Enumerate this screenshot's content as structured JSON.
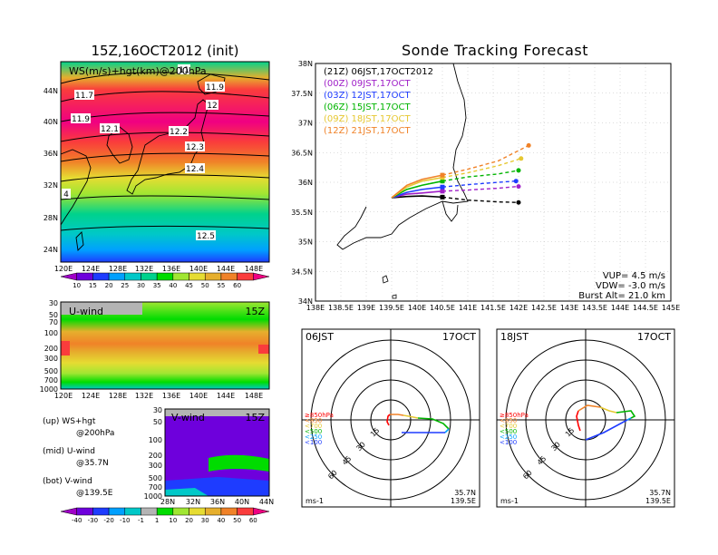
{
  "left_title": "15Z,16OCT2012 (init)",
  "right_title": "Sonde Tracking Forecast",
  "map_panel": {
    "label": "WS(m/s)+hgt(km)@200hPa",
    "lat_labels": [
      "44N",
      "40N",
      "36N",
      "32N",
      "28N",
      "24N"
    ],
    "lon_labels": [
      "120E",
      "124E",
      "128E",
      "132E",
      "136E",
      "140E",
      "144E",
      "148E"
    ],
    "contour_labels": [
      "11.7",
      "11.9",
      "12.1",
      "12.2",
      "12.3",
      "12.4",
      "12.5",
      "11.9",
      "12",
      "11",
      "4"
    ],
    "colorbar_labels": [
      "10",
      "15",
      "20",
      "25",
      "30",
      "35",
      "40",
      "45",
      "50",
      "55",
      "60"
    ],
    "colorbar_colors": [
      "#a000c8",
      "#6e00dc",
      "#1e3cff",
      "#00a0ff",
      "#00c8c8",
      "#00d28c",
      "#00dc00",
      "#a0e632",
      "#e6dc32",
      "#e6af2d",
      "#f08228",
      "#fa3c3c",
      "#f00082"
    ]
  },
  "uwind_panel": {
    "label": "U-wind",
    "time": "15Z",
    "y_labels": [
      "30",
      "50",
      "70",
      "100",
      "200",
      "300",
      "500",
      "700",
      "1000"
    ],
    "x_labels": [
      "120E",
      "124E",
      "128E",
      "132E",
      "136E",
      "140E",
      "144E",
      "148E"
    ]
  },
  "vwind_panel": {
    "label": "V-wind",
    "time": "15Z",
    "y_labels": [
      "30",
      "50",
      "100",
      "200",
      "300",
      "500",
      "700",
      "1000"
    ],
    "x_labels": [
      "28N",
      "32N",
      "36N",
      "40N",
      "44N"
    ]
  },
  "notes": [
    {
      "a": "(up) WS+hgt",
      "b": "@200hPa"
    },
    {
      "a": "(mid) U-wind",
      "b": "@35.7N"
    },
    {
      "a": "(bot) V-wind",
      "b": "@139.5E"
    }
  ],
  "bottom_colorbar_labels": [
    "-40",
    "-30",
    "-20",
    "-10",
    "-1",
    "1",
    "10",
    "20",
    "30",
    "40",
    "50",
    "60"
  ],
  "bottom_colorbar_colors": [
    "#a000c8",
    "#6e00dc",
    "#1e3cff",
    "#00a0ff",
    "#00c8c8",
    "#b4b4b4",
    "#00dc00",
    "#a0e632",
    "#e6dc32",
    "#e6af2d",
    "#f08228",
    "#fa3c3c",
    "#f00082"
  ],
  "track_panel": {
    "lat_labels": [
      "38N",
      "37.5N",
      "37N",
      "36.5N",
      "36N",
      "35.5N",
      "35N",
      "34.5N",
      "34N"
    ],
    "lon_labels": [
      "138E",
      "138.5E",
      "139E",
      "139.5E",
      "140E",
      "140.5E",
      "141E",
      "141.5E",
      "142E",
      "142.5E",
      "143E",
      "143.5E",
      "144E",
      "144.5E",
      "145E"
    ],
    "legend": [
      {
        "text": "(21Z)  06JST,17OCT2012",
        "color": "#000000"
      },
      {
        "text": "(00Z)  09JST,17OCT",
        "color": "#a020c8"
      },
      {
        "text": "(03Z)  12JST,17OCT",
        "color": "#1e3cff"
      },
      {
        "text": "(06Z)  15JST,17OCT",
        "color": "#00b400"
      },
      {
        "text": "(09Z)  18JST,17OCT",
        "color": "#e6c832"
      },
      {
        "text": "(12Z)  21JST,17OCT",
        "color": "#f08228"
      }
    ],
    "params": [
      "VUP=  4.5  m/s",
      "VDW= -3.0  m/s",
      "Burst Alt= 21.0  km"
    ]
  },
  "hodo_left": {
    "time": "06JST",
    "date": "17OCT",
    "rings": [
      "15",
      "30",
      "45",
      "60"
    ],
    "levels": [
      "≥850hPa",
      "<850",
      "<700",
      "<500",
      "<250",
      "<100"
    ],
    "level_colors": [
      "#ff0000",
      "#f08228",
      "#e6c832",
      "#00b400",
      "#00a0ff",
      "#1e3cff"
    ],
    "unit": "ms-1",
    "loc_lat": "35.7N",
    "loc_lon": "139.5E"
  },
  "hodo_right": {
    "time": "18JST",
    "date": "17OCT",
    "rings": [
      "15",
      "30",
      "45",
      "60"
    ],
    "levels": [
      "≥850hPa",
      "<850",
      "<700",
      "<500",
      "<250",
      "<100"
    ],
    "level_colors": [
      "#ff0000",
      "#f08228",
      "#e6c832",
      "#00b400",
      "#00a0ff",
      "#1e3cff"
    ],
    "unit": "ms-1",
    "loc_lat": "35.7N",
    "loc_lon": "139.5E"
  },
  "chart_data": [
    {
      "type": "line",
      "title": "Sonde Tracking Forecast",
      "xlim": [
        138,
        145
      ],
      "ylim": [
        34,
        38
      ],
      "series": [
        {
          "name": "(21Z)  06JST,17OCT2012",
          "color": "#000000",
          "points": [
            [
              139.5,
              35.74
            ],
            [
              139.8,
              35.76
            ],
            [
              140.1,
              35.77
            ],
            [
              140.5,
              35.75
            ],
            [
              141.0,
              35.7
            ],
            [
              141.6,
              35.67
            ],
            [
              142.0,
              35.66
            ]
          ]
        },
        {
          "name": "(00Z)  09JST,17OCT",
          "color": "#a020c8",
          "points": [
            [
              139.5,
              35.74
            ],
            [
              139.8,
              35.8
            ],
            [
              140.1,
              35.82
            ],
            [
              140.5,
              35.85
            ],
            [
              141.0,
              35.87
            ],
            [
              141.6,
              35.9
            ],
            [
              142.0,
              35.93
            ]
          ]
        },
        {
          "name": "(03Z)  12JST,17OCT",
          "color": "#1e3cff",
          "points": [
            [
              139.5,
              35.74
            ],
            [
              139.8,
              35.83
            ],
            [
              140.1,
              35.88
            ],
            [
              140.5,
              35.92
            ],
            [
              141.0,
              35.96
            ],
            [
              141.6,
              36.0
            ],
            [
              141.95,
              36.02
            ]
          ]
        },
        {
          "name": "(06Z)  15JST,17OCT",
          "color": "#00b400",
          "points": [
            [
              139.5,
              35.74
            ],
            [
              139.8,
              35.88
            ],
            [
              140.1,
              35.95
            ],
            [
              140.5,
              36.02
            ],
            [
              141.0,
              36.09
            ],
            [
              141.6,
              36.14
            ],
            [
              142.0,
              36.2
            ]
          ]
        },
        {
          "name": "(09Z)  18JST,17OCT",
          "color": "#e6c832",
          "points": [
            [
              139.5,
              35.74
            ],
            [
              139.8,
              35.92
            ],
            [
              140.1,
              36.02
            ],
            [
              140.5,
              36.08
            ],
            [
              141.0,
              36.16
            ],
            [
              141.6,
              36.28
            ],
            [
              142.05,
              36.4
            ]
          ]
        },
        {
          "name": "(12Z)  21JST,17OCT",
          "color": "#f08228",
          "points": [
            [
              139.5,
              35.74
            ],
            [
              139.8,
              35.95
            ],
            [
              140.1,
              36.05
            ],
            [
              140.5,
              36.12
            ],
            [
              141.0,
              36.22
            ],
            [
              141.6,
              36.36
            ],
            [
              142.2,
              36.62
            ]
          ]
        }
      ]
    }
  ]
}
